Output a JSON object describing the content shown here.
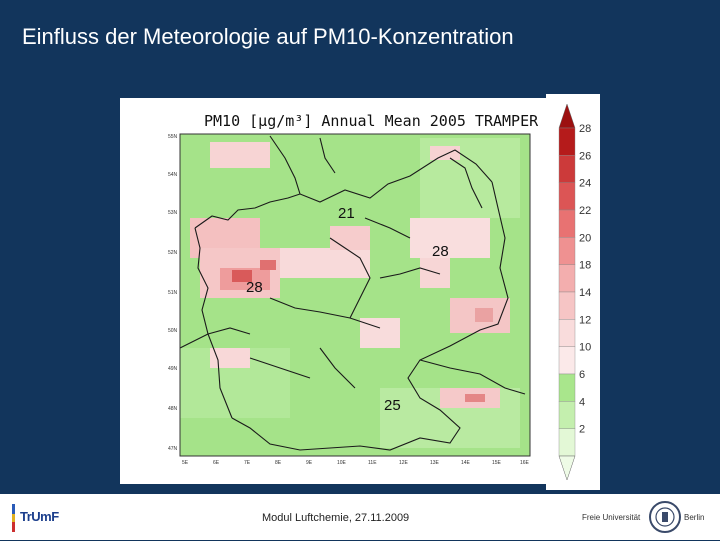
{
  "slide": {
    "title": "Einfluss der Meteorologie auf  PM10-Konzentration"
  },
  "map": {
    "title": "PM10 [μg/m³] Annual Mean 2005 TRAMPER",
    "annotations": [
      "21",
      "28",
      "28",
      "25"
    ],
    "lat_labels": [
      "55N",
      "54N",
      "53N",
      "52N",
      "51N",
      "50N",
      "49N",
      "48N",
      "47N"
    ],
    "lon_labels": [
      "5E",
      "6E",
      "7E",
      "8E",
      "9E",
      "10E",
      "11E",
      "12E",
      "13E",
      "14E",
      "15E",
      "16E"
    ]
  },
  "legend": {
    "values": [
      "28",
      "26",
      "24",
      "22",
      "20",
      "18",
      "14",
      "12",
      "10",
      "6",
      "4",
      "2"
    ],
    "colors": [
      "#b51b1b",
      "#cc3a3a",
      "#dc5555",
      "#e87272",
      "#ef9191",
      "#f3aeae",
      "#f6c5c5",
      "#f9dcdc",
      "#fbe9e9",
      "#a9e68c",
      "#c4efae",
      "#e3f8d6"
    ]
  },
  "footer": {
    "text": "Modul Luftchemie, 27.11.2009",
    "left_logo": "TrUmF",
    "right_logo_left": "Freie Universität",
    "right_logo_right": "Berlin"
  }
}
